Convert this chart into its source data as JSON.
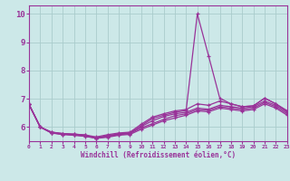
{
  "xlabel": "Windchill (Refroidissement éolien,°C)",
  "x_ticks": [
    0,
    1,
    2,
    3,
    4,
    5,
    6,
    7,
    8,
    9,
    10,
    11,
    12,
    13,
    14,
    15,
    16,
    17,
    18,
    19,
    20,
    21,
    22,
    23
  ],
  "ylim": [
    5.5,
    10.3
  ],
  "xlim": [
    0,
    23
  ],
  "yticks": [
    6,
    7,
    8,
    9,
    10
  ],
  "bg_color": "#cce8e8",
  "line_color": "#993399",
  "grid_color": "#aacccc",
  "lines": [
    [
      6.8,
      6.0,
      5.82,
      5.77,
      5.75,
      5.72,
      5.6,
      5.7,
      5.75,
      5.77,
      6.05,
      6.3,
      6.42,
      6.52,
      6.58,
      10.0,
      8.52,
      7.02,
      6.82,
      6.72,
      6.75,
      7.02,
      6.82,
      6.58
    ],
    [
      6.8,
      6.0,
      5.82,
      5.77,
      5.75,
      5.72,
      5.65,
      5.73,
      5.79,
      5.82,
      6.1,
      6.35,
      6.47,
      6.57,
      6.62,
      6.82,
      6.77,
      6.92,
      6.82,
      6.72,
      6.75,
      7.02,
      6.82,
      6.55
    ],
    [
      6.8,
      6.0,
      5.8,
      5.75,
      5.73,
      5.7,
      5.63,
      5.69,
      5.76,
      5.8,
      6.02,
      6.22,
      6.37,
      6.47,
      6.52,
      6.67,
      6.63,
      6.77,
      6.72,
      6.67,
      6.72,
      6.92,
      6.77,
      6.52
    ],
    [
      6.8,
      6.0,
      5.79,
      5.74,
      5.72,
      5.68,
      5.61,
      5.66,
      5.73,
      5.77,
      5.97,
      6.12,
      6.27,
      6.4,
      6.47,
      6.62,
      6.59,
      6.72,
      6.67,
      6.62,
      6.67,
      6.87,
      6.72,
      6.47
    ],
    [
      6.8,
      6.0,
      5.79,
      5.74,
      5.71,
      5.67,
      5.6,
      5.64,
      5.71,
      5.74,
      5.92,
      6.07,
      6.22,
      6.32,
      6.42,
      6.57,
      6.54,
      6.67,
      6.62,
      6.57,
      6.62,
      6.82,
      6.67,
      6.42
    ]
  ]
}
